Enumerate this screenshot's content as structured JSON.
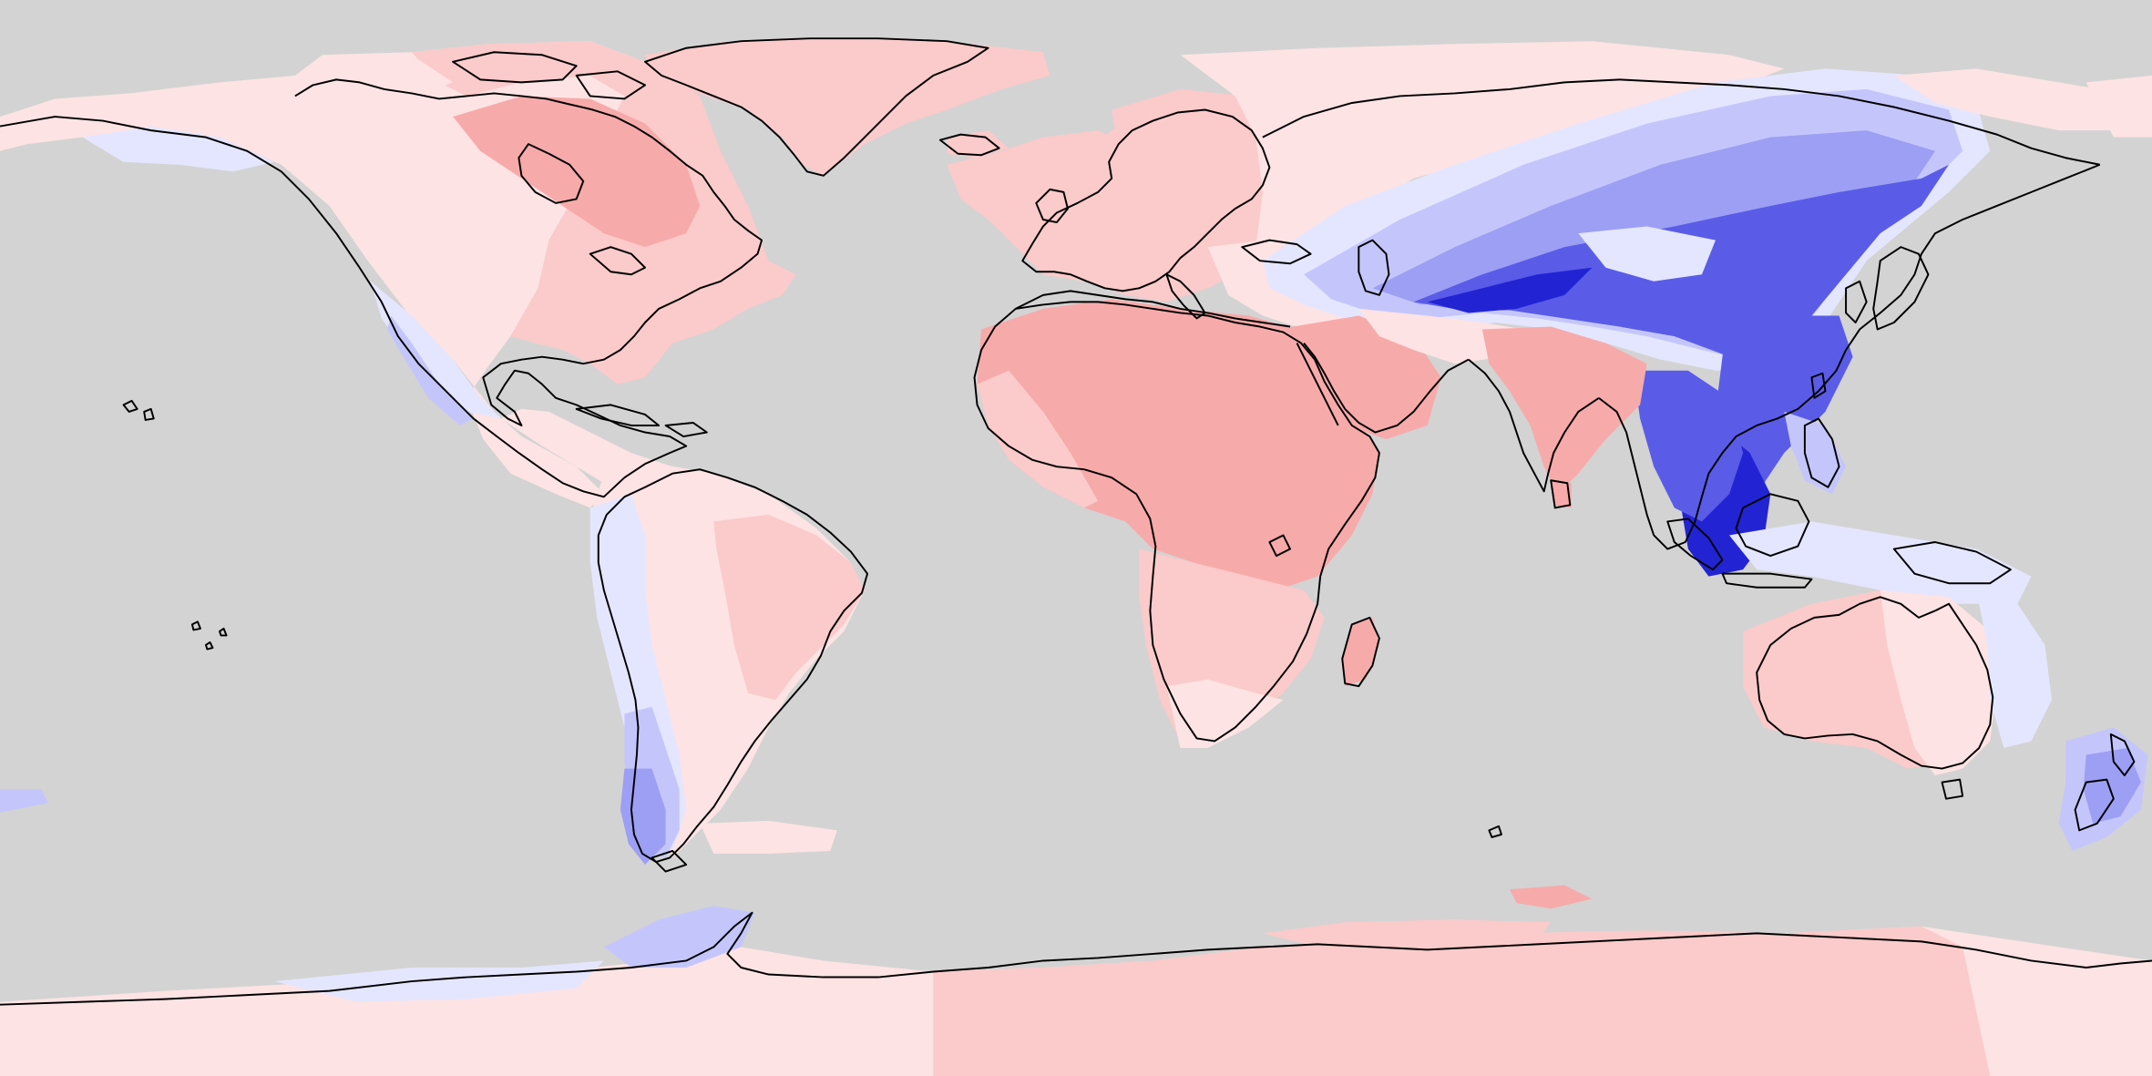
{
  "map": {
    "projection": "equirectangular",
    "extent": {
      "lon": [
        -180,
        180
      ],
      "lat": [
        -90,
        90
      ]
    },
    "background_color": "#d3d3d3",
    "coastline_color": "#000000",
    "palette": {
      "red_strong": "#f59999",
      "red_medium": "#f7aaaa",
      "red_light": "#fbcaca",
      "red_pale": "#fde3e3",
      "blue_pale": "#e4e6ff",
      "blue_light": "#c4c6fb",
      "blue_medium": "#9d9ff4",
      "blue_strong": "#5a5ce8",
      "blue_deep": "#2224d4"
    },
    "legend": null
  }
}
